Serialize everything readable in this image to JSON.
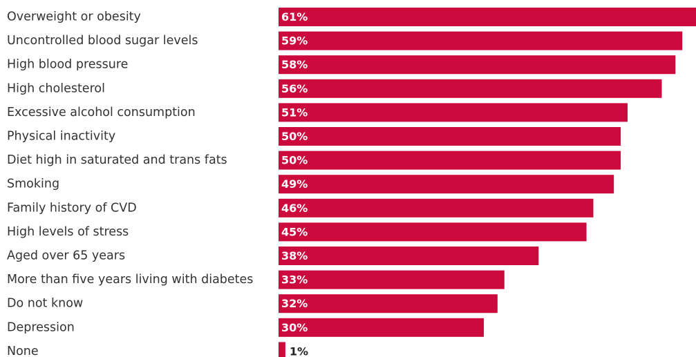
{
  "chart_data": {
    "type": "bar",
    "orientation": "horizontal",
    "categories": [
      "Overweight or obesity",
      "Uncontrolled blood sugar levels",
      "High blood pressure",
      "High cholesterol",
      "Excessive alcohol consumption",
      "Physical inactivity",
      "Diet high in saturated and trans fats",
      "Smoking",
      "Family history of CVD",
      "High levels of stress",
      "Aged over 65 years",
      "More than five years living with diabetes",
      "Do not know",
      "Depression",
      "None"
    ],
    "values": [
      61,
      59,
      58,
      56,
      51,
      50,
      50,
      49,
      46,
      45,
      38,
      33,
      32,
      30,
      1
    ],
    "value_labels": [
      "61%",
      "59%",
      "58%",
      "56%",
      "51%",
      "50%",
      "50%",
      "49%",
      "46%",
      "45%",
      "38%",
      "33%",
      "32%",
      "30%",
      "1%"
    ],
    "unit": "%",
    "xlim": [
      0,
      61
    ],
    "grid": false,
    "title": "",
    "xlabel": "",
    "ylabel": "",
    "colors": {
      "bar": "#cc0a3d",
      "label_inside": "#ffffff",
      "label_outside": "#222222",
      "category_text": "#333333"
    }
  }
}
